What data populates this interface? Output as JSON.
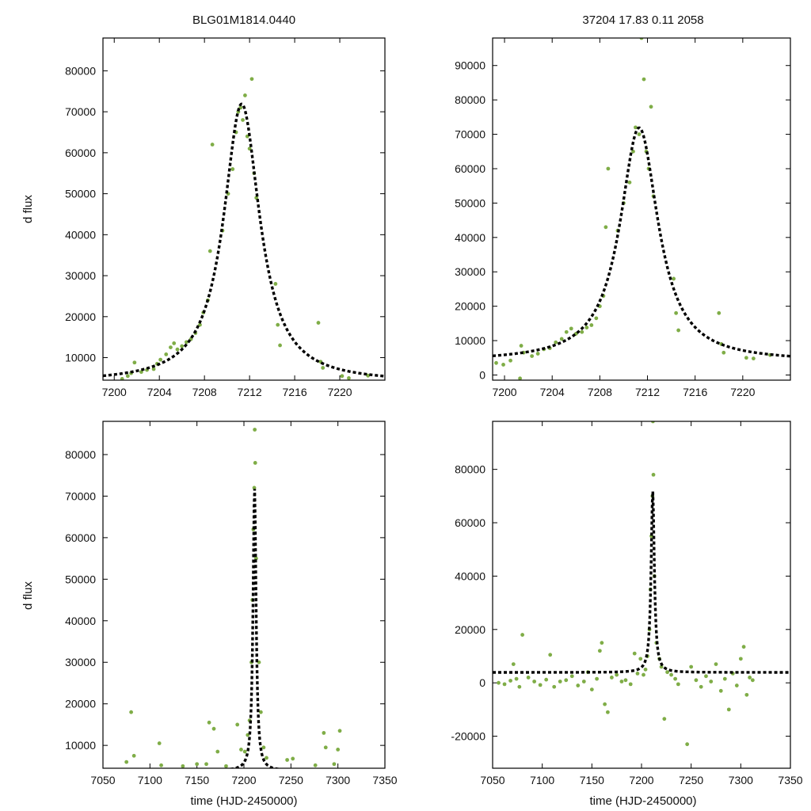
{
  "colors": {
    "points": "#7fad47",
    "model": "#000000",
    "frame": "#000000",
    "background": "#ffffff"
  },
  "figure": {
    "title_left": "BLG01M1814.0440",
    "title_right": "37204  17.83  0.11  2058",
    "ylabel": "d flux",
    "xlabel": "time (HJD-2450000)"
  },
  "chart_data": [
    {
      "type": "scatter",
      "panel": "top-left",
      "title": "BLG01M1814.0440",
      "xlabel": "",
      "ylabel": "d flux",
      "xlim": [
        7199,
        7224
      ],
      "ylim": [
        4500,
        88000
      ],
      "xticks": [
        7200,
        7204,
        7208,
        7212,
        7216,
        7220
      ],
      "xtick_labels": [
        "7200",
        "7204",
        "7208",
        "7212",
        "7216",
        "7220"
      ],
      "yticks": [
        10000,
        20000,
        30000,
        40000,
        50000,
        60000,
        70000,
        80000
      ],
      "ytick_labels": [
        "10000",
        "20000",
        "30000",
        "40000",
        "50000",
        "60000",
        "70000",
        "80000"
      ],
      "series": [
        {
          "name": "data",
          "kind": "points",
          "x": [
            7200.7,
            7201.2,
            7201.5,
            7201.8,
            7202.4,
            7202.9,
            7203.5,
            7203.8,
            7204.1,
            7204.6,
            7205.0,
            7205.3,
            7205.6,
            7206.0,
            7206.4,
            7206.8,
            7207.2,
            7207.6,
            7207.9,
            7208.3,
            7208.5,
            7208.7,
            7209.6,
            7210.1,
            7210.5,
            7210.8,
            7211.0,
            7211.2,
            7211.4,
            7211.6,
            7211.8,
            7212.0,
            7212.2,
            7212.4,
            7212.6,
            7214.3,
            7214.5,
            7214.7,
            7218.1,
            7218.3,
            7218.5,
            7220.2,
            7220.8,
            7222.5
          ],
          "y": [
            4800,
            5500,
            6200,
            8800,
            6500,
            7000,
            7200,
            8500,
            9500,
            10800,
            12500,
            13500,
            12000,
            12800,
            13800,
            14500,
            16000,
            18000,
            21000,
            24000,
            36000,
            62000,
            41000,
            50000,
            56000,
            65000,
            70000,
            71000,
            68000,
            74000,
            64000,
            61000,
            78000,
            55000,
            49000,
            28000,
            18000,
            13000,
            18500,
            9000,
            7500,
            5500,
            5000,
            5600
          ]
        },
        {
          "name": "model",
          "kind": "dashed-line",
          "t0": 7211.3,
          "peak": 68000,
          "width": 1.95,
          "base": 3900
        }
      ]
    },
    {
      "type": "scatter",
      "panel": "top-right",
      "title": "37204  17.83  0.11  2058",
      "xlabel": "",
      "ylabel": "",
      "xlim": [
        7199,
        7224
      ],
      "ylim": [
        -1500,
        98000
      ],
      "xticks": [
        7200,
        7204,
        7208,
        7212,
        7216,
        7220
      ],
      "xtick_labels": [
        "7200",
        "7204",
        "7208",
        "7212",
        "7216",
        "7220"
      ],
      "yticks": [
        0,
        10000,
        20000,
        30000,
        40000,
        50000,
        60000,
        70000,
        80000,
        90000
      ],
      "ytick_labels": [
        "0",
        "10000",
        "20000",
        "30000",
        "40000",
        "50000",
        "60000",
        "70000",
        "80000",
        "90000"
      ],
      "series": [
        {
          "name": "data",
          "kind": "points",
          "x": [
            7199.3,
            7199.9,
            7200.5,
            7201.3,
            7201.4,
            7201.6,
            7202.3,
            7202.8,
            7203.3,
            7203.8,
            7204.3,
            7204.8,
            7205.2,
            7205.6,
            7206.0,
            7206.5,
            7206.9,
            7207.3,
            7207.7,
            7208.0,
            7208.3,
            7208.5,
            7208.7,
            7209.5,
            7210.0,
            7210.5,
            7210.8,
            7211.0,
            7211.3,
            7211.5,
            7211.7,
            7211.9,
            7212.1,
            7212.3,
            7212.5,
            7214.2,
            7214.4,
            7214.6,
            7218.0,
            7218.2,
            7218.4,
            7220.3,
            7220.9,
            7222.3
          ],
          "y": [
            3500,
            3000,
            4200,
            -1000,
            8500,
            6500,
            5500,
            6200,
            7500,
            7800,
            9500,
            10500,
            12500,
            13500,
            12000,
            12500,
            13800,
            14500,
            16500,
            20000,
            23000,
            43000,
            60000,
            42000,
            50000,
            56000,
            65000,
            72000,
            70000,
            98000,
            86000,
            65000,
            60000,
            78000,
            52000,
            28000,
            18000,
            13000,
            18000,
            9000,
            6500,
            5000,
            4800,
            5800
          ]
        },
        {
          "name": "model",
          "kind": "dashed-line",
          "t0": 7211.3,
          "peak": 68000,
          "width": 1.95,
          "base": 3900
        }
      ]
    },
    {
      "type": "scatter",
      "panel": "bottom-left",
      "title": "",
      "xlabel": "time (HJD-2450000)",
      "ylabel": "d flux",
      "xlim": [
        7050,
        7350
      ],
      "ylim": [
        4500,
        88000
      ],
      "xticks": [
        7050,
        7100,
        7150,
        7200,
        7250,
        7300,
        7350
      ],
      "xtick_labels": [
        "7050",
        "7100",
        "7150",
        "7200",
        "7250",
        "7300",
        "7350"
      ],
      "yticks": [
        10000,
        20000,
        30000,
        40000,
        50000,
        60000,
        70000,
        80000
      ],
      "ytick_labels": [
        "10000",
        "20000",
        "30000",
        "40000",
        "50000",
        "60000",
        "70000",
        "80000"
      ],
      "series": [
        {
          "name": "data",
          "kind": "points",
          "x": [
            7075,
            7080,
            7083,
            7110,
            7112,
            7135,
            7150,
            7160,
            7163,
            7168,
            7172,
            7181,
            7193,
            7197,
            7201,
            7204,
            7206,
            7208,
            7209,
            7210,
            7211,
            7211.5,
            7212,
            7213,
            7216,
            7218,
            7221,
            7224,
            7246,
            7252,
            7276,
            7285,
            7287,
            7296,
            7300,
            7302
          ],
          "y": [
            6000,
            18000,
            7500,
            10500,
            5200,
            5000,
            5500,
            5500,
            15500,
            14000,
            8500,
            5000,
            15000,
            9000,
            8500,
            12500,
            16000,
            30000,
            45000,
            62000,
            72000,
            86000,
            78000,
            55000,
            30000,
            18000,
            9500,
            7000,
            6500,
            6800,
            5200,
            13000,
            9500,
            5500,
            9000,
            13500
          ]
        },
        {
          "name": "model",
          "kind": "dashed-line",
          "t0": 7211.3,
          "peak": 68000,
          "width": 1.95,
          "base": 3900
        }
      ]
    },
    {
      "type": "scatter",
      "panel": "bottom-right",
      "title": "",
      "xlabel": "time (HJD-2450000)",
      "ylabel": "",
      "xlim": [
        7050,
        7350
      ],
      "ylim": [
        -32000,
        98000
      ],
      "xticks": [
        7050,
        7100,
        7150,
        7200,
        7250,
        7300,
        7350
      ],
      "xtick_labels": [
        "7050",
        "7100",
        "7150",
        "7200",
        "7250",
        "7300",
        "7350"
      ],
      "yticks": [
        -20000,
        0,
        20000,
        40000,
        60000,
        80000
      ],
      "ytick_labels": [
        "-20000",
        "0",
        "20000",
        "40000",
        "60000",
        "80000"
      ],
      "series": [
        {
          "name": "data",
          "kind": "points",
          "x": [
            7056,
            7062,
            7068,
            7071,
            7074,
            7077,
            7080,
            7086,
            7092,
            7098,
            7104,
            7108,
            7112,
            7118,
            7124,
            7130,
            7136,
            7142,
            7146,
            7150,
            7155,
            7158,
            7160,
            7163,
            7166,
            7170,
            7175,
            7180,
            7184,
            7189,
            7193,
            7196,
            7199,
            7202,
            7204,
            7206,
            7208,
            7209,
            7210,
            7211,
            7211.5,
            7212,
            7213,
            7215,
            7218,
            7220,
            7223,
            7226,
            7230,
            7234,
            7237,
            7246,
            7250,
            7255,
            7260,
            7265,
            7270,
            7275,
            7280,
            7284,
            7288,
            7292,
            7296,
            7300,
            7303,
            7306,
            7309,
            7312
          ],
          "y": [
            0,
            -500,
            800,
            7000,
            1500,
            -1500,
            18000,
            2000,
            500,
            -800,
            1200,
            10500,
            -1500,
            500,
            1000,
            2500,
            -1000,
            500,
            4000,
            -2500,
            1500,
            12000,
            15000,
            -8000,
            -11000,
            2000,
            3000,
            500,
            1000,
            -500,
            11000,
            3500,
            9000,
            3000,
            5000,
            10000,
            20000,
            35000,
            55000,
            70000,
            98000,
            78000,
            40000,
            15000,
            9000,
            6000,
            -13500,
            4000,
            3000,
            1500,
            -500,
            -23000,
            6000,
            1000,
            -1500,
            2500,
            500,
            7000,
            -3000,
            1500,
            -10000,
            3500,
            -1000,
            9000,
            13500,
            -4500,
            2000,
            1000
          ]
        },
        {
          "name": "model",
          "kind": "dashed-line",
          "t0": 7211.3,
          "peak": 68000,
          "width": 1.95,
          "base": 3900
        }
      ]
    }
  ]
}
